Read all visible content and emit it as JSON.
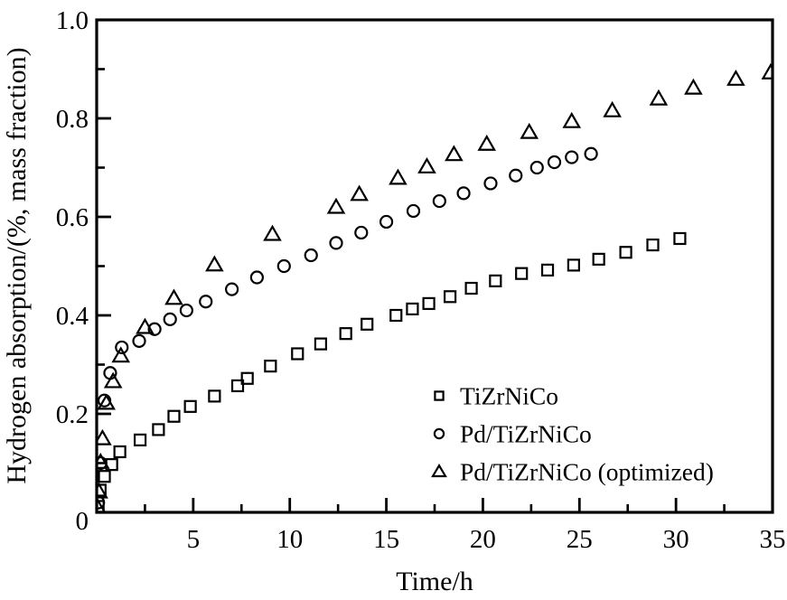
{
  "figure": {
    "colors": {
      "foreground": "#000000",
      "background": "#ffffff"
    }
  },
  "chart_data": {
    "type": "scatter",
    "title": "",
    "xlabel": "Time/h",
    "ylabel": "Hydrogen absorption/(%, mass fraction)",
    "xlim": [
      0,
      35
    ],
    "ylim": [
      0,
      1.0
    ],
    "grid": false,
    "x_ticks": {
      "major": [
        0,
        5,
        10,
        15,
        20,
        25,
        30,
        35
      ],
      "minor": [
        2.5,
        7.5,
        12.5,
        17.5,
        22.5,
        27.5,
        32.5
      ],
      "label_values": [
        5,
        10,
        15,
        20,
        25,
        30,
        35
      ],
      "labels": [
        "5",
        "10",
        "15",
        "20",
        "25",
        "30",
        "35"
      ]
    },
    "y_ticks": {
      "major": [
        0,
        0.2,
        0.4,
        0.6,
        0.8,
        1.0
      ],
      "minor": [
        0.1,
        0.3,
        0.5,
        0.7,
        0.9
      ],
      "label_values": [
        0,
        0.2,
        0.4,
        0.6,
        0.8,
        1.0
      ],
      "labels": [
        "0",
        "0.2",
        "0.4",
        "0.6",
        "0.8",
        "1.0"
      ]
    },
    "legend": {
      "position": "inside-bottom-right",
      "entries": [
        "TiZrNiCo",
        "Pd/TiZrNiCo",
        "Pd/TiZrNiCo (optimized)"
      ]
    },
    "series": [
      {
        "name": "TiZrNiCo",
        "marker": "square",
        "color": "#000000",
        "points": [
          [
            0.08,
            0.012
          ],
          [
            0.18,
            0.045
          ],
          [
            0.4,
            0.073
          ],
          [
            0.78,
            0.097
          ],
          [
            1.2,
            0.123
          ],
          [
            2.25,
            0.147
          ],
          [
            3.2,
            0.168
          ],
          [
            4.0,
            0.195
          ],
          [
            4.85,
            0.215
          ],
          [
            6.1,
            0.236
          ],
          [
            7.3,
            0.257
          ],
          [
            7.8,
            0.272
          ],
          [
            9.0,
            0.297
          ],
          [
            10.4,
            0.322
          ],
          [
            11.6,
            0.342
          ],
          [
            12.9,
            0.363
          ],
          [
            14.0,
            0.382
          ],
          [
            15.5,
            0.4
          ],
          [
            16.35,
            0.413
          ],
          [
            17.2,
            0.424
          ],
          [
            18.3,
            0.438
          ],
          [
            19.4,
            0.455
          ],
          [
            20.65,
            0.47
          ],
          [
            22.0,
            0.485
          ],
          [
            23.35,
            0.492
          ],
          [
            24.7,
            0.502
          ],
          [
            26.0,
            0.514
          ],
          [
            27.4,
            0.528
          ],
          [
            28.8,
            0.543
          ],
          [
            30.2,
            0.556
          ]
        ]
      },
      {
        "name": "Pd/TiZrNiCo",
        "marker": "circle",
        "color": "#000000",
        "points": [
          [
            0.08,
            0.02
          ],
          [
            0.2,
            0.1
          ],
          [
            0.4,
            0.227
          ],
          [
            0.7,
            0.283
          ],
          [
            1.3,
            0.335
          ],
          [
            2.2,
            0.348
          ],
          [
            3.0,
            0.372
          ],
          [
            3.8,
            0.392
          ],
          [
            4.65,
            0.41
          ],
          [
            5.65,
            0.428
          ],
          [
            7.0,
            0.453
          ],
          [
            8.3,
            0.477
          ],
          [
            9.7,
            0.5
          ],
          [
            11.1,
            0.522
          ],
          [
            12.4,
            0.547
          ],
          [
            13.7,
            0.568
          ],
          [
            15.0,
            0.59
          ],
          [
            16.4,
            0.612
          ],
          [
            17.75,
            0.632
          ],
          [
            19.0,
            0.648
          ],
          [
            20.4,
            0.668
          ],
          [
            21.7,
            0.684
          ],
          [
            22.8,
            0.7
          ],
          [
            23.7,
            0.711
          ],
          [
            24.6,
            0.721
          ],
          [
            25.6,
            0.728
          ]
        ]
      },
      {
        "name": "Pd/TiZrNiCo (optimized)",
        "marker": "triangle",
        "color": "#000000",
        "points": [
          [
            0.05,
            0.01
          ],
          [
            0.12,
            0.042
          ],
          [
            0.2,
            0.102
          ],
          [
            0.3,
            0.15
          ],
          [
            0.5,
            0.222
          ],
          [
            0.85,
            0.266
          ],
          [
            1.25,
            0.318
          ],
          [
            2.5,
            0.376
          ],
          [
            4.0,
            0.435
          ],
          [
            6.1,
            0.503
          ],
          [
            9.1,
            0.565
          ],
          [
            12.4,
            0.62
          ],
          [
            13.6,
            0.646
          ],
          [
            15.6,
            0.679
          ],
          [
            17.1,
            0.702
          ],
          [
            18.5,
            0.727
          ],
          [
            20.2,
            0.748
          ],
          [
            22.4,
            0.772
          ],
          [
            24.6,
            0.794
          ],
          [
            26.7,
            0.816
          ],
          [
            29.1,
            0.84
          ],
          [
            30.9,
            0.862
          ],
          [
            33.1,
            0.88
          ],
          [
            34.9,
            0.893
          ]
        ]
      }
    ]
  }
}
